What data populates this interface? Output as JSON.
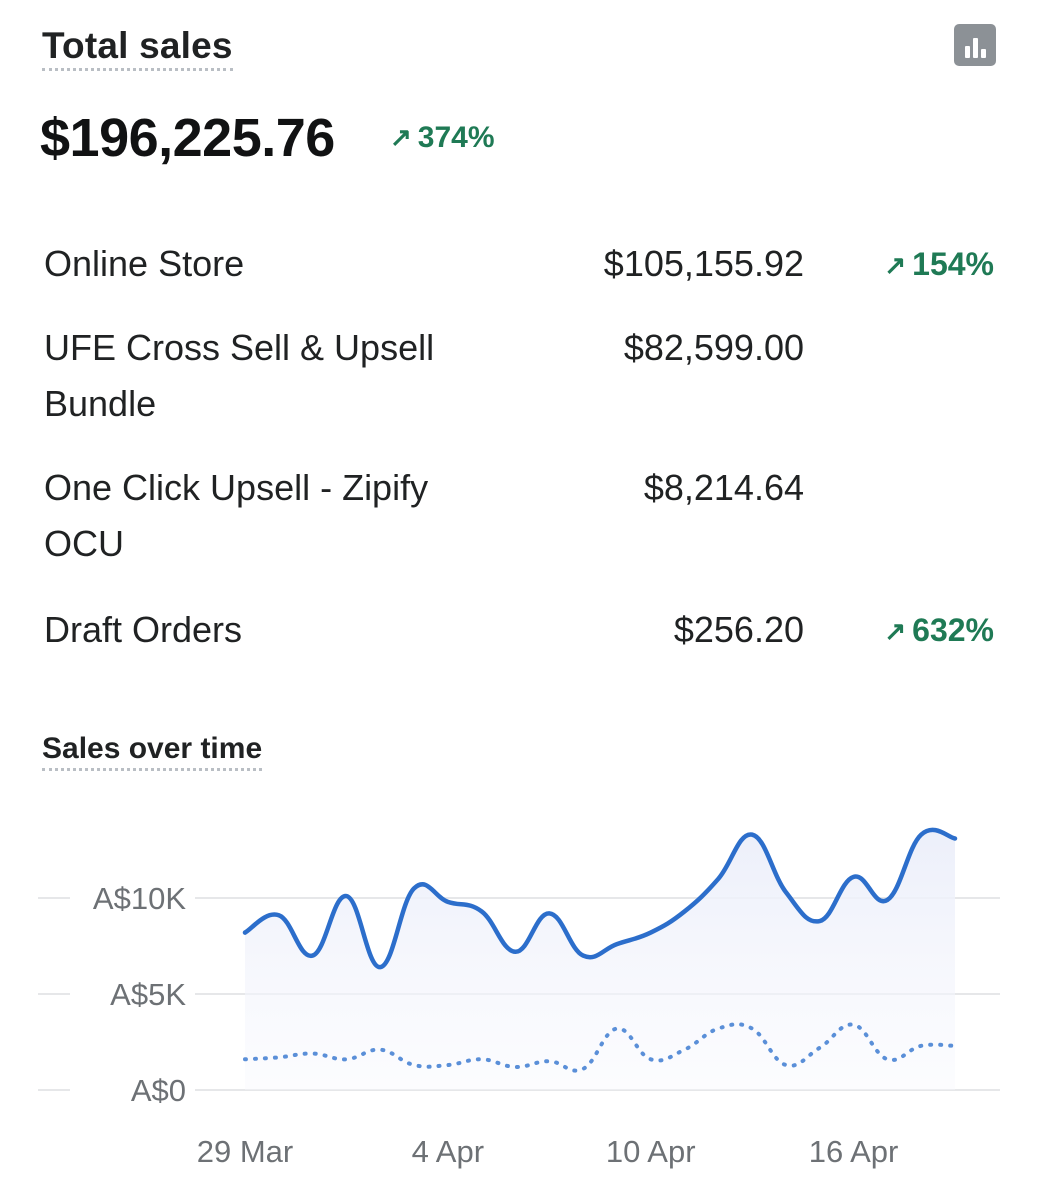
{
  "header": {
    "title": "Total sales",
    "icon": "bar-chart-icon"
  },
  "summary": {
    "total": "$196,225.76",
    "change": "374%"
  },
  "channels": [
    {
      "name": "Online Store",
      "value": "$105,155.92",
      "change": "154%"
    },
    {
      "name": "UFE Cross Sell & Upsell Bundle",
      "value": "$82,599.00",
      "change": ""
    },
    {
      "name": "One Click Upsell - Zipify OCU",
      "value": "$8,214.64",
      "change": ""
    },
    {
      "name": "Draft Orders",
      "value": "$256.20",
      "change": "632%"
    }
  ],
  "chart_section": {
    "title": "Sales over time"
  },
  "chart_data": {
    "type": "line",
    "x": [
      "29 Mar",
      "30 Mar",
      "31 Mar",
      "1 Apr",
      "2 Apr",
      "3 Apr",
      "4 Apr",
      "5 Apr",
      "6 Apr",
      "7 Apr",
      "8 Apr",
      "9 Apr",
      "10 Apr",
      "11 Apr",
      "12 Apr",
      "13 Apr",
      "14 Apr",
      "15 Apr",
      "16 Apr",
      "17 Apr",
      "18 Apr",
      "19 Apr"
    ],
    "x_tick_labels": [
      "29 Mar",
      "4 Apr",
      "10 Apr",
      "16 Apr"
    ],
    "y_tick_labels": [
      "A$0",
      "A$5K",
      "A$10K"
    ],
    "ylim": [
      0,
      14000
    ],
    "grid": true,
    "colors": {
      "current": "#2c6ecb",
      "previous": "#5a8fd8",
      "area": "#eef0fb",
      "grid": "#e6e7e9",
      "axis": "#6d7175"
    },
    "series": [
      {
        "style": "solid",
        "values": [
          8200,
          9100,
          7000,
          10100,
          6400,
          10500,
          9800,
          9300,
          7200,
          9200,
          7000,
          7600,
          8200,
          9300,
          11000,
          13300,
          10300,
          8800,
          11100,
          9900,
          13300,
          13100
        ]
      },
      {
        "style": "dotted",
        "values": [
          1600,
          1700,
          1900,
          1600,
          2100,
          1300,
          1300,
          1600,
          1200,
          1500,
          1100,
          3200,
          1600,
          2100,
          3200,
          3200,
          1300,
          2200,
          3400,
          1600,
          2300,
          2300
        ]
      }
    ]
  }
}
